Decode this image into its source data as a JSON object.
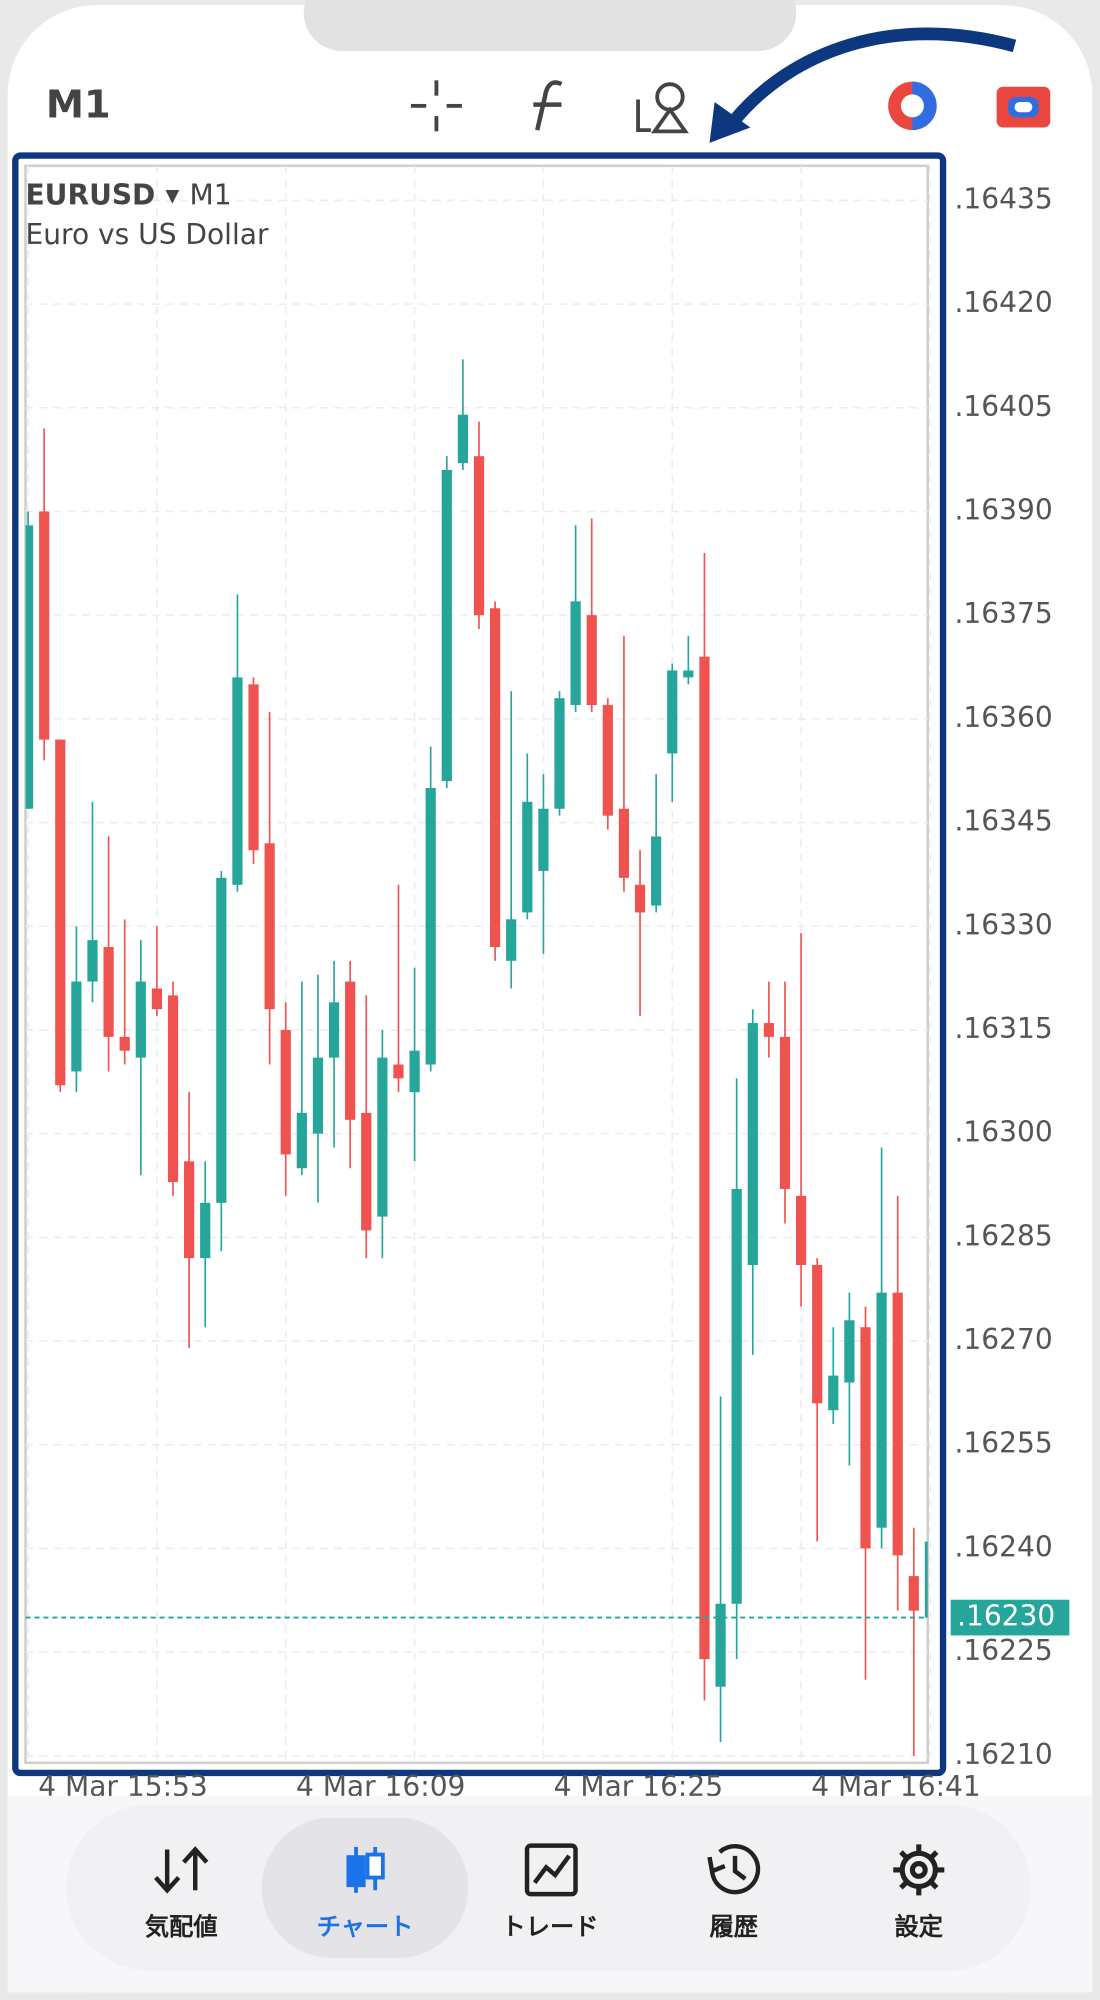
{
  "toolbar": {
    "timeframe": "M1"
  },
  "chart_data": {
    "type": "candlestick",
    "symbol": "EURUSD",
    "timeframe": "M1",
    "description": "Euro vs US Dollar",
    "categories": [
      "4 Mar 15:53",
      null,
      null,
      null,
      null,
      null,
      null,
      null,
      null,
      null,
      null,
      null,
      null,
      null,
      null,
      null,
      "4 Mar 16:09",
      null,
      null,
      null,
      null,
      null,
      null,
      null,
      null,
      null,
      null,
      null,
      null,
      null,
      null,
      null,
      "4 Mar 16:25",
      null,
      null,
      null,
      null,
      null,
      null,
      null,
      null,
      null,
      null,
      null,
      null,
      null,
      null,
      null,
      "4 Mar 16:41",
      null,
      null,
      null,
      null,
      null,
      null,
      null,
      null
    ],
    "open": [
      1.16347,
      1.1639,
      1.16357,
      1.16309,
      1.16322,
      1.16327,
      1.16314,
      1.16311,
      1.16321,
      1.1632,
      1.16296,
      1.16282,
      1.1629,
      1.16336,
      1.16365,
      1.16342,
      1.16315,
      1.16295,
      1.163,
      1.16311,
      1.16322,
      1.16303,
      1.16288,
      1.1631,
      1.16306,
      1.1631,
      1.16351,
      1.16397,
      1.16398,
      1.16376,
      1.16325,
      1.16332,
      1.16338,
      1.16347,
      1.16362,
      1.16375,
      1.16362,
      1.16347,
      1.16336,
      1.16333,
      1.16355,
      1.16366,
      1.16369,
      1.1622,
      1.16232,
      1.16281,
      1.16316,
      1.16314,
      1.16291,
      1.16281,
      1.1626,
      1.16264,
      1.16272,
      1.16243,
      1.16277,
      1.16236,
      1.1623
    ],
    "high": [
      1.1639,
      1.16402,
      1.16357,
      1.1633,
      1.16348,
      1.16343,
      1.16331,
      1.16328,
      1.1633,
      1.16322,
      1.16306,
      1.16296,
      1.16338,
      1.16378,
      1.16366,
      1.16361,
      1.16319,
      1.16322,
      1.16323,
      1.16325,
      1.16325,
      1.1632,
      1.16315,
      1.16336,
      1.16324,
      1.16356,
      1.16398,
      1.16412,
      1.16403,
      1.16377,
      1.16364,
      1.16355,
      1.16352,
      1.16364,
      1.16388,
      1.16389,
      1.16363,
      1.16372,
      1.16341,
      1.16352,
      1.16368,
      1.16372,
      1.16384,
      1.16262,
      1.16308,
      1.16318,
      1.16322,
      1.16322,
      1.16329,
      1.16282,
      1.16272,
      1.16277,
      1.16275,
      1.16298,
      1.16291,
      1.16243,
      1.16241
    ],
    "low": [
      1.16347,
      1.16354,
      1.16306,
      1.16306,
      1.16319,
      1.16309,
      1.1631,
      1.16294,
      1.16317,
      1.16291,
      1.16269,
      1.16272,
      1.16283,
      1.16335,
      1.16339,
      1.1631,
      1.16291,
      1.16294,
      1.1629,
      1.16298,
      1.16295,
      1.16282,
      1.16282,
      1.16306,
      1.16296,
      1.16309,
      1.1635,
      1.16396,
      1.16373,
      1.16325,
      1.16321,
      1.16331,
      1.16326,
      1.16346,
      1.16361,
      1.16361,
      1.16344,
      1.16335,
      1.16317,
      1.16332,
      1.16348,
      1.16365,
      1.16218,
      1.16212,
      1.16224,
      1.16268,
      1.16311,
      1.16287,
      1.16275,
      1.16241,
      1.16258,
      1.16252,
      1.16221,
      1.1624,
      1.16231,
      1.1621,
      1.1623
    ],
    "close": [
      1.16388,
      1.16357,
      1.16307,
      1.16322,
      1.16328,
      1.16314,
      1.16312,
      1.16322,
      1.16318,
      1.16293,
      1.16282,
      1.1629,
      1.16337,
      1.16366,
      1.16341,
      1.16318,
      1.16297,
      1.16303,
      1.16311,
      1.16319,
      1.16302,
      1.16286,
      1.16311,
      1.16308,
      1.16312,
      1.1635,
      1.16396,
      1.16404,
      1.16375,
      1.16327,
      1.16331,
      1.16348,
      1.16347,
      1.16363,
      1.16377,
      1.16362,
      1.16346,
      1.16337,
      1.16332,
      1.16343,
      1.16367,
      1.16367,
      1.16224,
      1.16232,
      1.16292,
      1.16316,
      1.16314,
      1.16292,
      1.16281,
      1.16261,
      1.16265,
      1.16273,
      1.1624,
      1.16277,
      1.16239,
      1.16231,
      1.16241
    ],
    "up_color": "#26a69a",
    "down_color": "#ef5350",
    "ylim": [
      1.16209,
      1.1644
    ],
    "yticks": [
      {
        "value": 1.16435,
        "label": ".16435"
      },
      {
        "value": 1.1642,
        "label": ".16420"
      },
      {
        "value": 1.16405,
        "label": ".16405"
      },
      {
        "value": 1.1639,
        "label": ".16390"
      },
      {
        "value": 1.16375,
        "label": ".16375"
      },
      {
        "value": 1.1636,
        "label": ".16360"
      },
      {
        "value": 1.16345,
        "label": ".16345"
      },
      {
        "value": 1.1633,
        "label": ".16330"
      },
      {
        "value": 1.16315,
        "label": ".16315"
      },
      {
        "value": 1.163,
        "label": ".16300"
      },
      {
        "value": 1.16285,
        "label": ".16285"
      },
      {
        "value": 1.1627,
        "label": ".16270"
      },
      {
        "value": 1.16255,
        "label": ".16255"
      },
      {
        "value": 1.1624,
        "label": ".16240"
      },
      {
        "value": 1.16225,
        "label": ".16225"
      },
      {
        "value": 1.1621,
        "label": ".16210"
      }
    ],
    "current_price": {
      "value": 1.1623,
      "label": ".16230"
    },
    "grid": true
  },
  "nav": {
    "items": [
      "気配値",
      "チャート",
      "トレード",
      "履歴",
      "設定"
    ],
    "active": 1
  }
}
